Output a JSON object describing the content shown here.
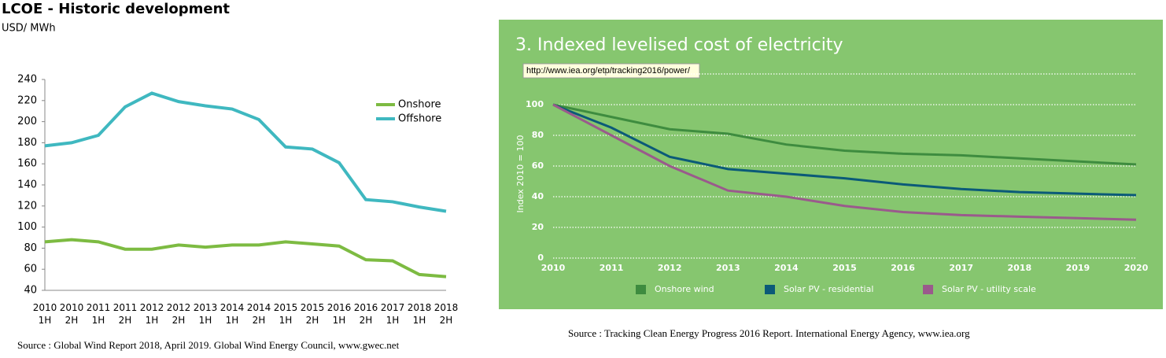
{
  "chart_data": [
    {
      "type": "line",
      "title": "LCOE - Historic development",
      "subtitle": "USD/ MWh",
      "categories": [
        "2010 1H",
        "2010 2H",
        "2011 1H",
        "2011 2H",
        "2012 1H",
        "2012 2H",
        "2013 1H",
        "2014 1H",
        "2014 2H",
        "2015 1H",
        "2015 2H",
        "2016 1H",
        "2016 2H",
        "2017 1H",
        "2018 1H",
        "2018 2H"
      ],
      "series": [
        {
          "name": "Onshore",
          "color": "#7dbb42",
          "values": [
            86,
            88,
            86,
            79,
            79,
            83,
            81,
            83,
            83,
            86,
            84,
            82,
            69,
            68,
            55,
            53
          ]
        },
        {
          "name": "Offshore",
          "color": "#3fb8c0",
          "values": [
            177,
            180,
            187,
            214,
            227,
            219,
            215,
            212,
            202,
            176,
            174,
            161,
            126,
            124,
            119,
            115
          ]
        }
      ],
      "ylim": [
        40,
        240
      ],
      "yticks": [
        40,
        60,
        80,
        100,
        120,
        140,
        160,
        180,
        200,
        220,
        240
      ],
      "legend": "upper right",
      "source": "Source :  Global Wind Report 2018, April 2019. Global Wind Energy Council, www.gwec.net"
    },
    {
      "type": "line",
      "title": "3. Indexed levelised cost of electricity",
      "tooltip": "http://www.iea.org/etp/tracking2016/power/",
      "y_label": "Index 2010 = 100",
      "x": [
        2010,
        2011,
        2012,
        2013,
        2014,
        2015,
        2016,
        2017,
        2018,
        2019,
        2020
      ],
      "series": [
        {
          "name": "Onshore wind",
          "color": "#3e8c3f",
          "values": [
            100,
            92,
            84,
            81,
            74,
            70,
            68,
            67,
            65,
            63,
            61
          ]
        },
        {
          "name": "Solar PV - residential",
          "color": "#0b5a78",
          "values": [
            100,
            85,
            66,
            58,
            55,
            52,
            48,
            45,
            43,
            42,
            41
          ]
        },
        {
          "name": "Solar PV - utility scale",
          "color": "#9a5a8c",
          "values": [
            100,
            80,
            60,
            44,
            40,
            34,
            30,
            28,
            27,
            26,
            25
          ]
        }
      ],
      "xlim": [
        2010,
        2020
      ],
      "xticks": [
        2010,
        2011,
        2012,
        2013,
        2014,
        2015,
        2016,
        2017,
        2018,
        2019,
        2020
      ],
      "ylim": [
        0,
        120
      ],
      "yticks": [
        0,
        20,
        40,
        60,
        80,
        100
      ],
      "grid": true,
      "legend": "bottom",
      "background": "#86c66f",
      "source": "Source : Tracking Clean Energy Progress 2016 Report. International Energy Agency, www.iea.org"
    }
  ]
}
